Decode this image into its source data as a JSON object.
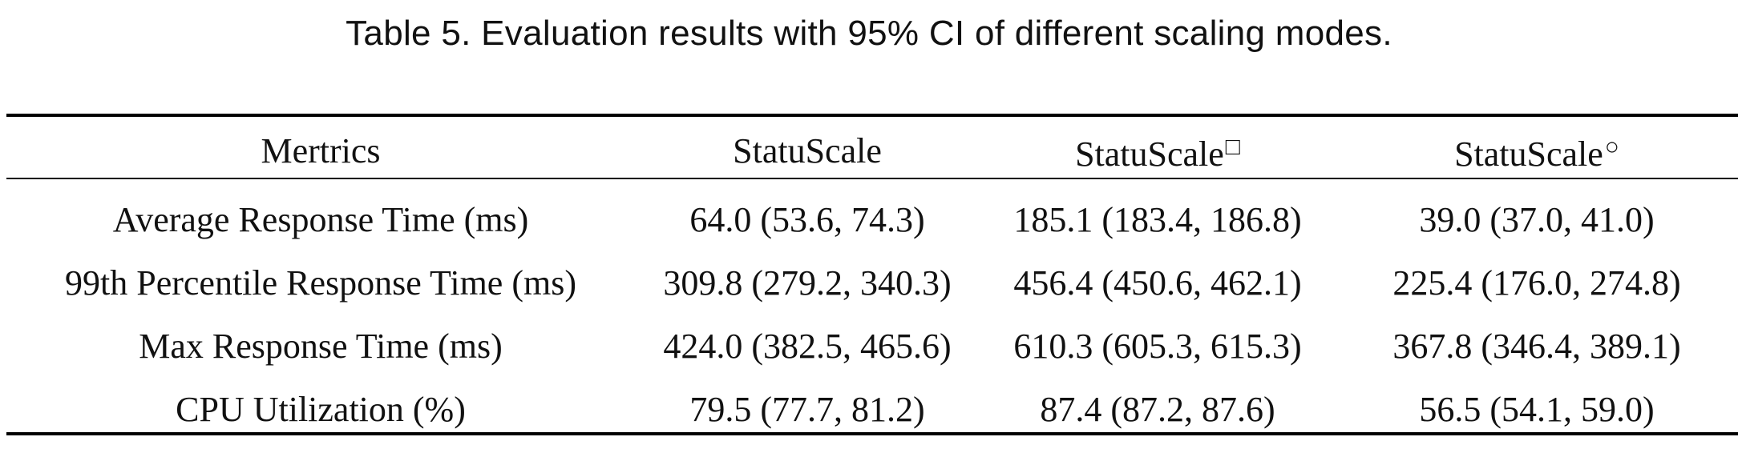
{
  "caption": "Table 5.  Evaluation results with 95% CI of different scaling modes.",
  "table": {
    "headers": [
      {
        "label": "Mertrics",
        "mark": ""
      },
      {
        "label": "StatuScale",
        "mark": ""
      },
      {
        "label": "StatuScale",
        "mark": "□"
      },
      {
        "label": "StatuScale",
        "mark": "○"
      }
    ],
    "rows": [
      {
        "metric": "Average Response Time (ms)",
        "values": [
          "64.0 (53.6, 74.3)",
          "185.1 (183.4, 186.8)",
          "39.0 (37.0, 41.0)"
        ],
        "bold_index": 2
      },
      {
        "metric": "99th Percentile Response Time (ms)",
        "values": [
          "309.8 (279.2, 340.3)",
          "456.4 (450.6, 462.1)",
          "225.4 (176.0, 274.8)"
        ],
        "bold_index": 2
      },
      {
        "metric": "Max Response Time (ms)",
        "values": [
          "424.0 (382.5, 465.6)",
          "610.3 (605.3, 615.3)",
          "367.8 (346.4, 389.1)"
        ],
        "bold_index": 2
      },
      {
        "metric": "CPU Utilization (%)",
        "values": [
          "79.5 (77.7, 81.2)",
          "87.4 (87.2, 87.6)",
          "56.5 (54.1, 59.0)"
        ],
        "bold_index": 1
      }
    ]
  }
}
